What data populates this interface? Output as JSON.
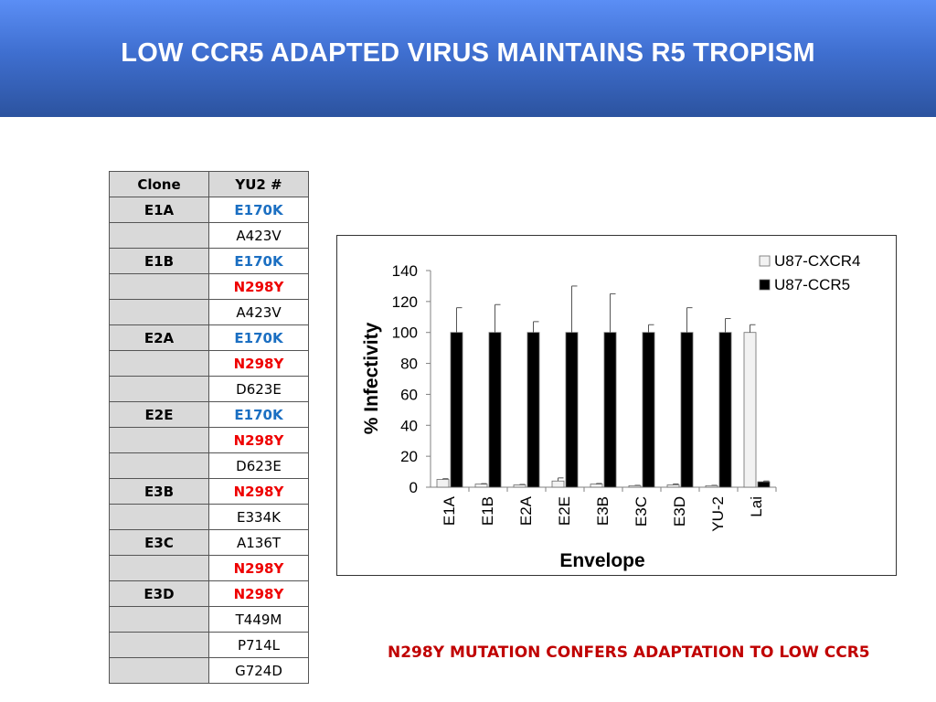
{
  "slide": {
    "title": "LOW CCR5 ADAPTED VIRUS MAINTAINS R5 TROPISM",
    "footnote": "N298Y MUTATION CONFERS ADAPTATION TO LOW CCR5"
  },
  "table": {
    "headers": [
      "Clone",
      "YU2 #"
    ],
    "rows": [
      {
        "clone": "E1A",
        "mutation": "E170K",
        "color": "blue"
      },
      {
        "clone": "",
        "mutation": "A423V",
        "color": "black"
      },
      {
        "clone": "E1B",
        "mutation": "E170K",
        "color": "blue"
      },
      {
        "clone": "",
        "mutation": "N298Y",
        "color": "red"
      },
      {
        "clone": "",
        "mutation": "A423V",
        "color": "black"
      },
      {
        "clone": "E2A",
        "mutation": "E170K",
        "color": "blue"
      },
      {
        "clone": "",
        "mutation": "N298Y",
        "color": "red"
      },
      {
        "clone": "",
        "mutation": "D623E",
        "color": "black"
      },
      {
        "clone": "E2E",
        "mutation": "E170K",
        "color": "blue"
      },
      {
        "clone": "",
        "mutation": "N298Y",
        "color": "red"
      },
      {
        "clone": "",
        "mutation": "D623E",
        "color": "black"
      },
      {
        "clone": "E3B",
        "mutation": "N298Y",
        "color": "red"
      },
      {
        "clone": "",
        "mutation": "E334K",
        "color": "black"
      },
      {
        "clone": "E3C",
        "mutation": "A136T",
        "color": "black"
      },
      {
        "clone": "",
        "mutation": "N298Y",
        "color": "red"
      },
      {
        "clone": "E3D",
        "mutation": "N298Y",
        "color": "red"
      },
      {
        "clone": "",
        "mutation": "T449M",
        "color": "black"
      },
      {
        "clone": "",
        "mutation": "P714L",
        "color": "black"
      },
      {
        "clone": "",
        "mutation": "G724D",
        "color": "black"
      }
    ]
  },
  "chart_data": {
    "type": "bar",
    "title": "",
    "xlabel": "Envelope",
    "ylabel": "% Infectivity",
    "ylim": [
      0,
      140
    ],
    "yticks": [
      0,
      20,
      40,
      60,
      80,
      100,
      120,
      140
    ],
    "categories": [
      "E1A",
      "E1B",
      "E2A",
      "E2E",
      "E3B",
      "E3C",
      "E3D",
      "YU-2",
      "Lai"
    ],
    "series": [
      {
        "name": "U87-CXCR4",
        "color": "#f2f2f2",
        "values": [
          5,
          2,
          1.5,
          4,
          2,
          1,
          1.5,
          1,
          100
        ],
        "errors": [
          0.5,
          0.3,
          0.3,
          2,
          0.4,
          0.2,
          0.6,
          0.2,
          5
        ]
      },
      {
        "name": "U87-CCR5",
        "color": "#000000",
        "values": [
          100,
          100,
          100,
          100,
          100,
          100,
          100,
          100,
          3.5
        ],
        "errors": [
          16,
          18,
          7,
          30,
          25,
          5,
          16,
          9,
          0.5
        ]
      }
    ],
    "legend": "top-right",
    "grid": false
  }
}
